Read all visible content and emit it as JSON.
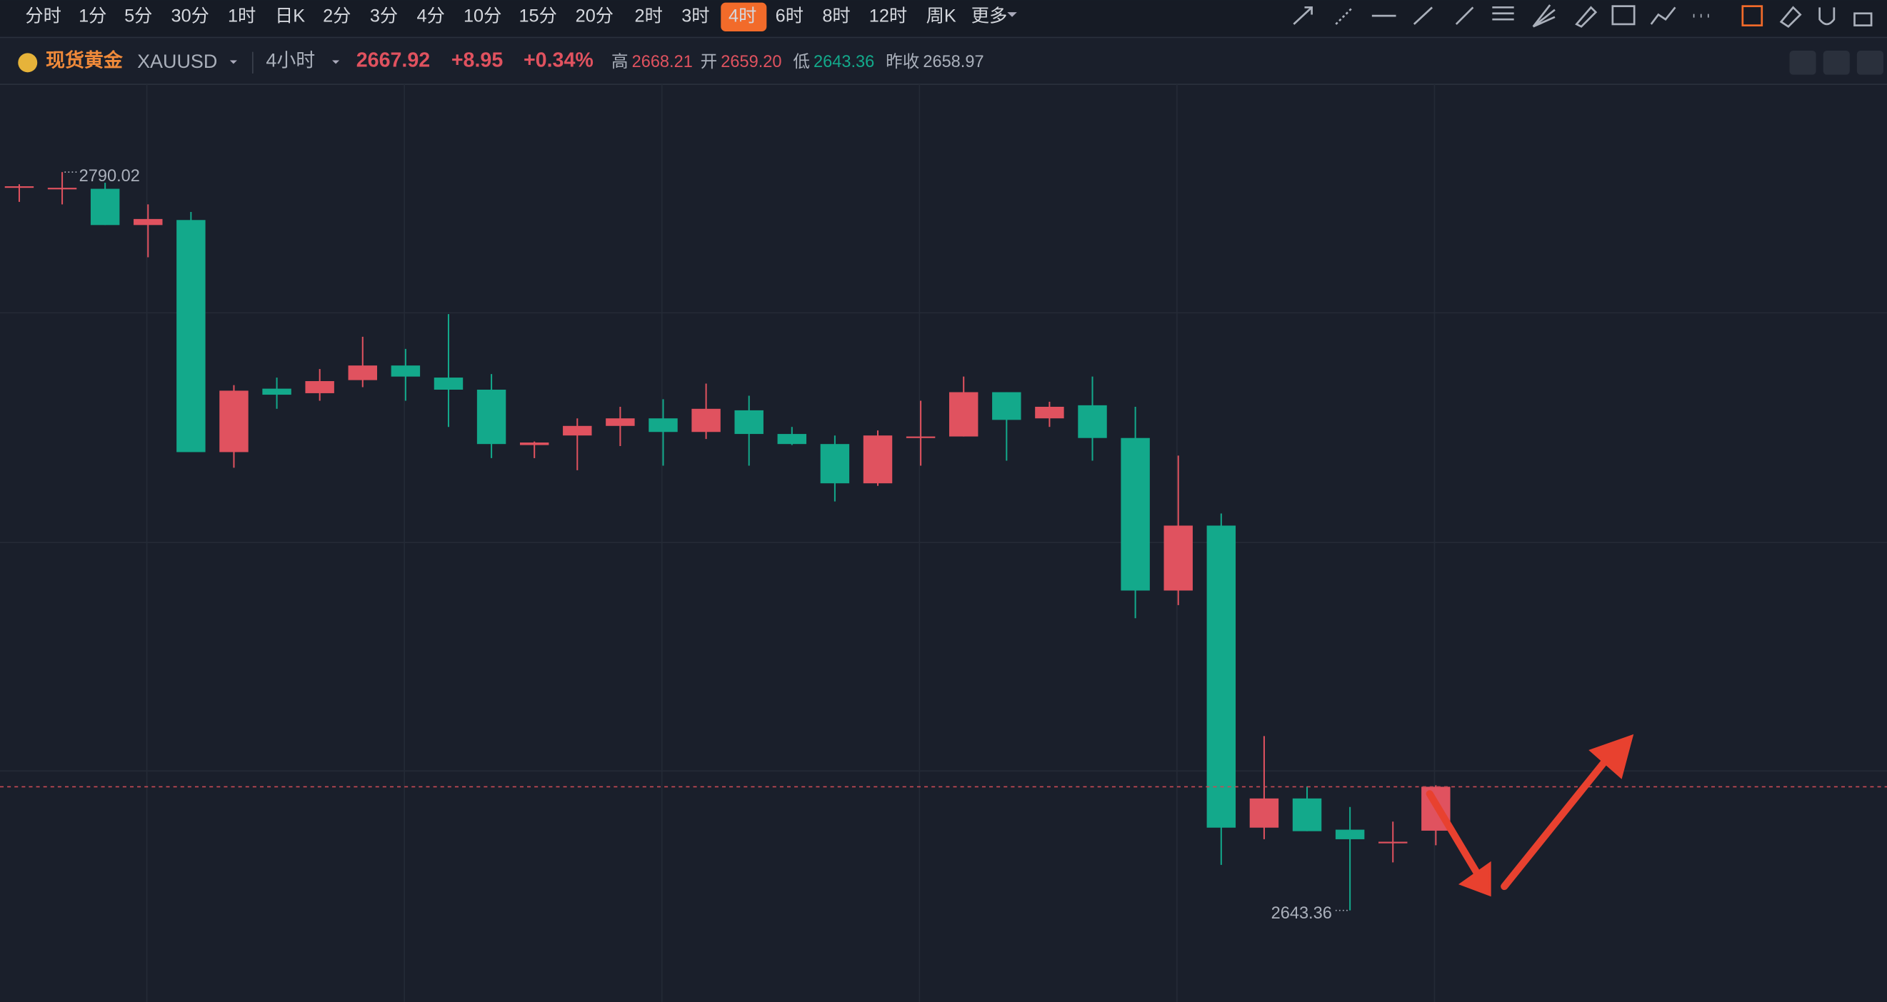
{
  "toolbar": {
    "intervals": [
      "分时",
      "1分",
      "5分",
      "30分",
      "1时",
      "日K",
      "2分",
      "3分",
      "4分",
      "10分",
      "15分",
      "20分",
      "2时",
      "3时",
      "4时",
      "6时",
      "8时",
      "12时",
      "周K",
      "更多"
    ]
  },
  "header": {
    "name": "现货黄金",
    "symbol": "XAUUSD",
    "period": "4小时",
    "price": "2667.92",
    "change": "+8.95",
    "change_pct": "+0.34%",
    "high_label": "高",
    "high": "2668.21",
    "open_label": "开",
    "open": "2659.20",
    "low_label": "低",
    "low": "2643.36",
    "prev_label": "昨收",
    "prev_close": "2658.97"
  },
  "chart_data": {
    "type": "candlestick",
    "up_color": "#e0525f",
    "down_color": "#13a98b",
    "ylim": [
      2625.2,
      2807.45
    ],
    "candles": [
      {
        "open": 2787.2,
        "high": 2787.6,
        "low": 2784.1,
        "close": 2787.2
      },
      {
        "open": 2786.9,
        "high": 2790.02,
        "low": 2783.6,
        "close": 2786.9
      },
      {
        "open": 2786.7,
        "high": 2787.9,
        "low": 2779.5,
        "close": 2779.5
      },
      {
        "open": 2779.5,
        "high": 2783.6,
        "low": 2773.1,
        "close": 2780.7
      },
      {
        "open": 2780.5,
        "high": 2782.1,
        "low": 2734.4,
        "close": 2734.4
      },
      {
        "open": 2734.4,
        "high": 2747.7,
        "low": 2731.3,
        "close": 2746.6
      },
      {
        "open": 2747.0,
        "high": 2749.2,
        "low": 2743.0,
        "close": 2745.8
      },
      {
        "open": 2746.1,
        "high": 2750.9,
        "low": 2744.6,
        "close": 2748.5
      },
      {
        "open": 2748.7,
        "high": 2757.3,
        "low": 2747.3,
        "close": 2751.6
      },
      {
        "open": 2751.6,
        "high": 2754.9,
        "low": 2744.6,
        "close": 2749.4
      },
      {
        "open": 2749.2,
        "high": 2761.8,
        "low": 2739.4,
        "close": 2746.8
      },
      {
        "open": 2746.8,
        "high": 2749.9,
        "low": 2733.2,
        "close": 2736.0
      },
      {
        "open": 2735.8,
        "high": 2736.5,
        "low": 2733.2,
        "close": 2736.3
      },
      {
        "open": 2737.7,
        "high": 2741.1,
        "low": 2730.8,
        "close": 2739.6
      },
      {
        "open": 2739.6,
        "high": 2743.4,
        "low": 2735.6,
        "close": 2741.1
      },
      {
        "open": 2741.1,
        "high": 2744.9,
        "low": 2731.7,
        "close": 2738.4
      },
      {
        "open": 2738.4,
        "high": 2748.0,
        "low": 2737.0,
        "close": 2743.0
      },
      {
        "open": 2742.7,
        "high": 2745.6,
        "low": 2731.7,
        "close": 2738.0
      },
      {
        "open": 2738.0,
        "high": 2739.4,
        "low": 2735.8,
        "close": 2736.0
      },
      {
        "open": 2736.0,
        "high": 2737.7,
        "low": 2724.6,
        "close": 2728.2
      },
      {
        "open": 2728.2,
        "high": 2738.7,
        "low": 2727.7,
        "close": 2737.7
      },
      {
        "open": 2737.2,
        "high": 2744.6,
        "low": 2731.7,
        "close": 2737.5
      },
      {
        "open": 2737.5,
        "high": 2749.4,
        "low": 2737.5,
        "close": 2746.3
      },
      {
        "open": 2746.3,
        "high": 2746.3,
        "low": 2732.7,
        "close": 2740.8
      },
      {
        "open": 2741.1,
        "high": 2744.4,
        "low": 2739.4,
        "close": 2743.4
      },
      {
        "open": 2743.7,
        "high": 2749.4,
        "low": 2732.7,
        "close": 2737.2
      },
      {
        "open": 2737.2,
        "high": 2743.4,
        "low": 2701.4,
        "close": 2706.9
      },
      {
        "open": 2706.9,
        "high": 2733.7,
        "low": 2704.0,
        "close": 2719.8
      },
      {
        "open": 2719.8,
        "high": 2722.2,
        "low": 2652.4,
        "close": 2659.8
      },
      {
        "open": 2659.8,
        "high": 2678.0,
        "low": 2657.5,
        "close": 2665.6
      },
      {
        "open": 2665.6,
        "high": 2668.0,
        "low": 2659.1,
        "close": 2659.1
      },
      {
        "open": 2659.4,
        "high": 2663.9,
        "low": 2643.36,
        "close": 2657.5
      },
      {
        "open": 2657.0,
        "high": 2661.0,
        "low": 2652.9,
        "close": 2657.0
      },
      {
        "open": 2659.2,
        "high": 2668.21,
        "low": 2656.3,
        "close": 2667.92
      }
    ]
  }
}
